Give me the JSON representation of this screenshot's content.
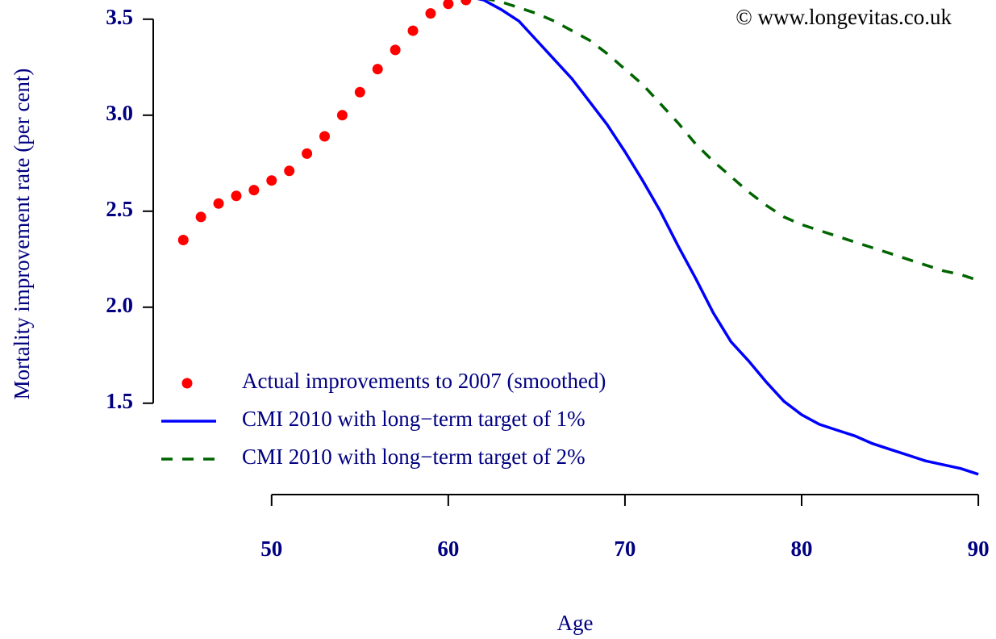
{
  "chart_data": {
    "type": "line",
    "title": "© www.longevitas.co.uk",
    "x_label": "Age",
    "y_label": "Mortality improvement rate (per cent)",
    "x": [
      45,
      46,
      47,
      48,
      49,
      50,
      51,
      52,
      53,
      54,
      55,
      56,
      57,
      58,
      59,
      60,
      61,
      62,
      63,
      64,
      65,
      66,
      67,
      68,
      69,
      70,
      71,
      72,
      73,
      74,
      75,
      76,
      77,
      78,
      79,
      80,
      81,
      82,
      83,
      84,
      85,
      86,
      87,
      88,
      89,
      90
    ],
    "series": [
      {
        "name": "Actual improvements to 2007 (smoothed)",
        "color": "#ff0000",
        "style": "points",
        "values": [
          2.35,
          2.47,
          2.54,
          2.58,
          2.61,
          2.66,
          2.71,
          2.8,
          2.89,
          3.0,
          3.12,
          3.24,
          3.34,
          3.44,
          3.53,
          3.58,
          3.6,
          null,
          null,
          null,
          null,
          null,
          null,
          null,
          null,
          null,
          null,
          null,
          null,
          null,
          null,
          null,
          null,
          null,
          null,
          null,
          null,
          null,
          null,
          null,
          null,
          null,
          null,
          null,
          null,
          null
        ]
      },
      {
        "name": "CMI 2010 with long−term target of 1%",
        "color": "#0000ff",
        "style": "solid",
        "values": [
          null,
          null,
          null,
          null,
          null,
          null,
          null,
          null,
          null,
          null,
          null,
          null,
          null,
          null,
          null,
          null,
          3.62,
          3.6,
          3.55,
          3.49,
          3.39,
          3.29,
          3.19,
          3.07,
          2.95,
          2.81,
          2.66,
          2.5,
          2.32,
          2.15,
          1.97,
          1.82,
          1.72,
          1.61,
          1.51,
          1.44,
          1.39,
          1.36,
          1.33,
          1.29,
          1.26,
          1.23,
          1.2,
          1.18,
          1.16,
          1.13
        ]
      },
      {
        "name": "CMI 2010 with long−term target of 2%",
        "color": "#006400",
        "style": "dashed",
        "values": [
          null,
          null,
          null,
          null,
          null,
          null,
          null,
          null,
          null,
          null,
          null,
          null,
          null,
          null,
          null,
          null,
          null,
          3.61,
          3.59,
          3.56,
          3.53,
          3.49,
          3.44,
          3.39,
          3.32,
          3.24,
          3.16,
          3.06,
          2.96,
          2.85,
          2.76,
          2.68,
          2.6,
          2.53,
          2.47,
          2.43,
          2.4,
          2.37,
          2.34,
          2.31,
          2.28,
          2.25,
          2.22,
          2.19,
          2.17,
          2.14
        ]
      }
    ],
    "xlim": [
      43.3,
      91
    ],
    "ylim": [
      1.02,
      3.6
    ],
    "xticks": [
      50,
      60,
      70,
      80,
      90
    ],
    "yticks": [
      {
        "value": 1.5,
        "label": "1.5"
      },
      {
        "value": 2,
        "label": "2.0"
      },
      2.5,
      {
        "value": 3,
        "label": "3.0"
      },
      3.5
    ],
    "legend": "bottom-left"
  }
}
